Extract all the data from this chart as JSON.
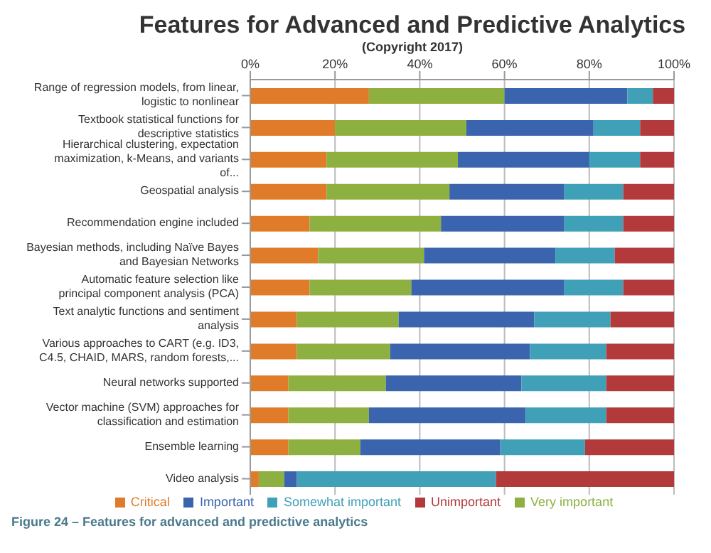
{
  "chart_data": {
    "type": "bar",
    "orientation": "horizontal",
    "stacked": true,
    "title": "Features for Advanced and Predictive Analytics",
    "subtitle": "(Copyright 2017)",
    "categories": [
      "Range of regression models, from linear, logistic to nonlinear",
      "Textbook statistical functions for descriptive statistics",
      "Hierarchical clustering, expectation maximization, k-Means, and variants of...",
      "Geospatial analysis",
      "Recommendation engine included",
      "Bayesian methods, including Naïve Bayes and Bayesian Networks",
      "Automatic feature selection like principal component analysis (PCA)",
      "Text analytic functions and sentiment analysis",
      "Various approaches to CART (e.g. ID3, C4.5, CHAID, MARS, random forests,...",
      "Neural networks supported",
      "Vector machine (SVM) approaches for classification and estimation",
      "Ensemble learning",
      "Video analysis"
    ],
    "series": [
      {
        "name": "Critical",
        "color": "#e07b2a",
        "values": [
          28,
          20,
          18,
          18,
          14,
          16,
          14,
          11,
          11,
          9,
          9,
          9,
          2
        ]
      },
      {
        "name": "Very important",
        "color": "#8db040",
        "values": [
          32,
          31,
          31,
          29,
          31,
          25,
          24,
          24,
          22,
          23,
          19,
          17,
          6
        ]
      },
      {
        "name": "Important",
        "color": "#3a64ad",
        "values": [
          29,
          30,
          31,
          27,
          29,
          31,
          36,
          32,
          33,
          32,
          37,
          33,
          3
        ]
      },
      {
        "name": "Somewhat important",
        "color": "#3fa0b8",
        "values": [
          6,
          11,
          12,
          14,
          14,
          14,
          14,
          18,
          18,
          20,
          19,
          20,
          47
        ]
      },
      {
        "name": "Unimportant",
        "color": "#b23a3a",
        "values": [
          5,
          8,
          8,
          12,
          12,
          14,
          12,
          15,
          16,
          16,
          16,
          21,
          42
        ]
      }
    ],
    "xlim": [
      0,
      100
    ],
    "xticks": [
      {
        "value": 0,
        "label": "0%"
      },
      {
        "value": 20,
        "label": "20%"
      },
      {
        "value": 40,
        "label": "40%"
      },
      {
        "value": 60,
        "label": "60%"
      },
      {
        "value": 80,
        "label": "80%"
      },
      {
        "value": 100,
        "label": "100%"
      }
    ],
    "grid": "x",
    "legend": "bottom",
    "annotations": [
      "Figure 24 – Features for advanced and predictive analytics"
    ]
  }
}
